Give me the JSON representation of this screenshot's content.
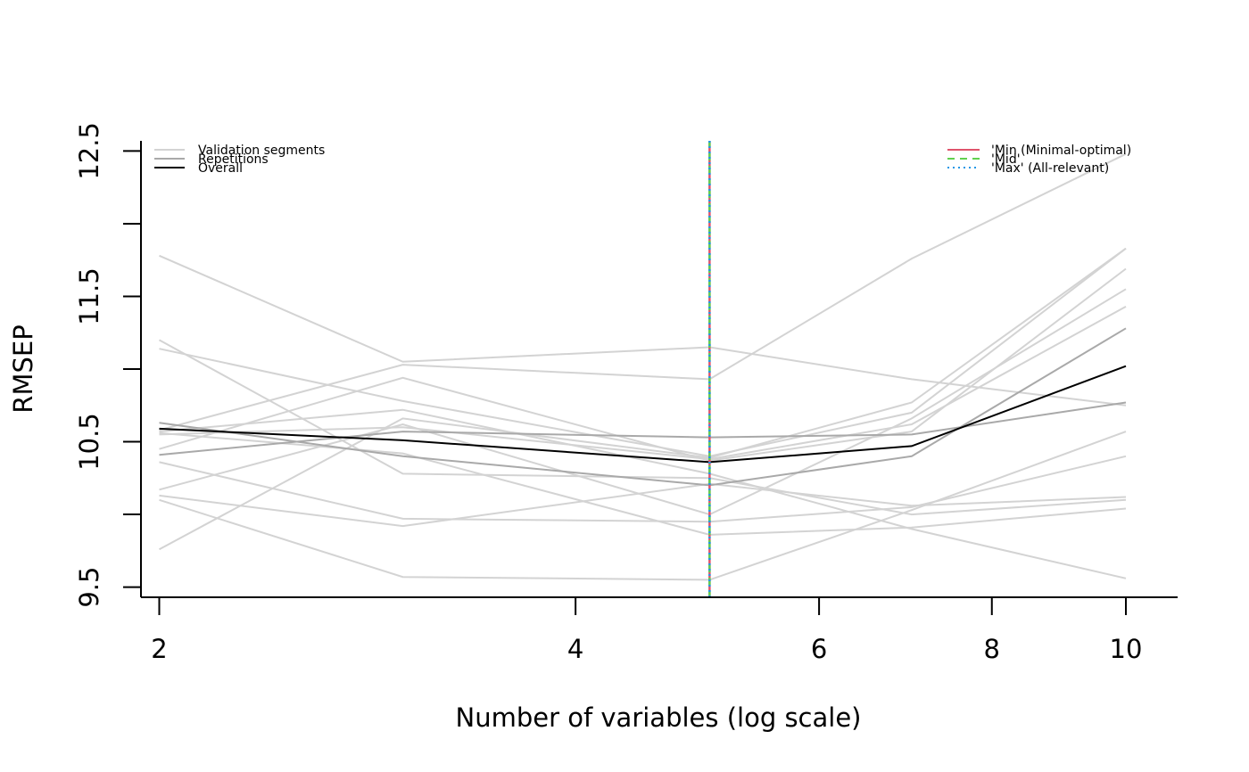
{
  "chart_data": {
    "type": "line",
    "x": [
      2,
      3,
      5,
      7,
      10
    ],
    "xlabel": "Number of variables (log scale)",
    "ylabel": "RMSEP",
    "x_scale": "log",
    "xlim": [
      1.94,
      10.9
    ],
    "ylim": [
      9.43,
      12.57
    ],
    "x_ticks": [
      2,
      4,
      6,
      8,
      10
    ],
    "y_ticks": [
      9.5,
      10,
      10.5,
      11,
      11.5,
      12,
      12.5
    ],
    "y_tick_labels": [
      "9.5",
      "",
      "10.5",
      "",
      "11.5",
      "",
      "12.5"
    ],
    "grid": false,
    "colors": {
      "segment": "#d3d3d3",
      "repetition": "#a9a9a9",
      "overall": "#000000",
      "min": "#DF536B",
      "mid": "#61D04F",
      "max": "#2297E6"
    },
    "validation_segments": [
      [
        11.78,
        11.05,
        11.15,
        10.93,
        10.75
      ],
      [
        11.2,
        10.28,
        10.25,
        10.0,
        10.1
      ],
      [
        11.14,
        10.78,
        10.4,
        10.7,
        11.83
      ],
      [
        10.57,
        10.72,
        10.28,
        9.9,
        9.56
      ],
      [
        10.55,
        10.6,
        10.38,
        10.62,
        11.43
      ],
      [
        10.45,
        10.94,
        10.37,
        10.57,
        11.69
      ],
      [
        10.36,
        9.97,
        9.95,
        10.05,
        10.4
      ],
      [
        10.17,
        10.62,
        10.0,
        10.66,
        11.55
      ],
      [
        10.13,
        9.92,
        10.21,
        10.06,
        10.12
      ],
      [
        10.1,
        9.57,
        9.55,
        10.03,
        10.57
      ],
      [
        9.76,
        10.66,
        10.39,
        10.77,
        11.83
      ],
      [
        10.58,
        11.03,
        10.93,
        11.76,
        12.48
      ],
      [
        10.56,
        10.42,
        9.86,
        9.91,
        10.04
      ]
    ],
    "repetitions": [
      [
        10.63,
        10.4,
        10.2,
        10.4,
        11.28
      ],
      [
        10.41,
        10.57,
        10.53,
        10.55,
        10.77
      ]
    ],
    "overall": [
      10.59,
      10.51,
      10.36,
      10.47,
      11.02
    ],
    "reference_lines": [
      {
        "name": "'Min (Minimal-optimal)",
        "x": 5,
        "style": "solid",
        "color": "#DF536B"
      },
      {
        "name": "'Mid'",
        "x": 5,
        "style": "dashed",
        "color": "#61D04F"
      },
      {
        "name": "'Max' (All-relevant)",
        "x": 5,
        "style": "dotted",
        "color": "#2297E6"
      }
    ],
    "legend_left": [
      {
        "label": "Validation segments",
        "color": "#d3d3d3"
      },
      {
        "label": "Repetitions",
        "color": "#a9a9a9"
      },
      {
        "label": "Overall",
        "color": "#000000"
      }
    ],
    "legend_placement": [
      "top-left",
      "top-right"
    ]
  }
}
